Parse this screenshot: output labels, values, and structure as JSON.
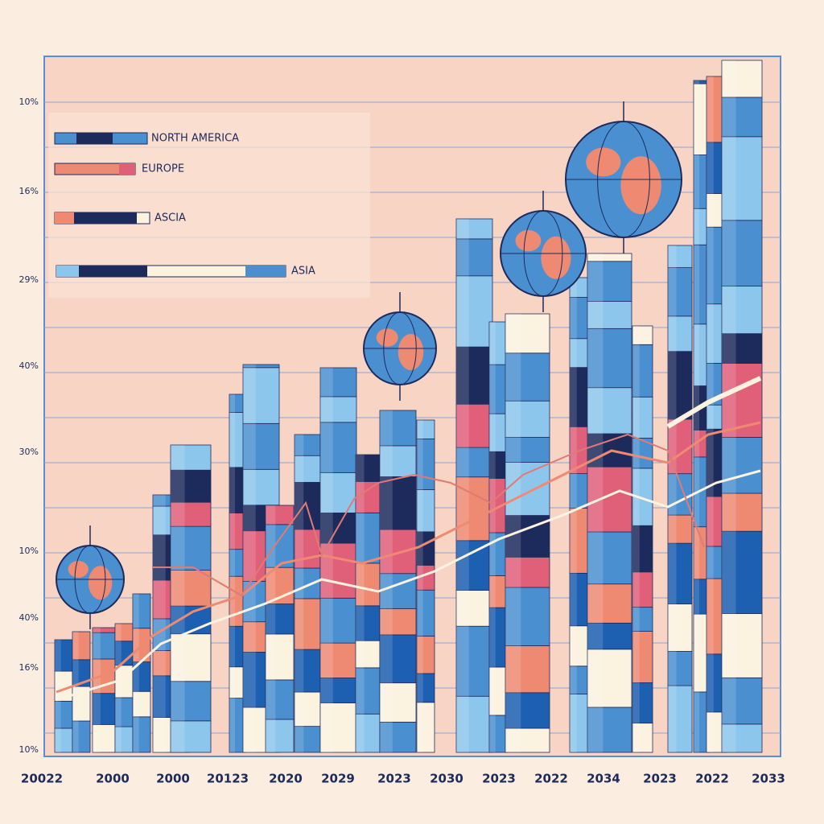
{
  "axis_labels": {
    "y": [
      "10%",
      "16%",
      "29%",
      "40%",
      "30%",
      "10%",
      "40%",
      "16%",
      "10%"
    ],
    "x": [
      "20022",
      "2000",
      "2000",
      "20123",
      "2020",
      "2029",
      "2023",
      "2030",
      "2023",
      "2022",
      "2034",
      "2023",
      "2022",
      "2033"
    ]
  },
  "legend": [
    "NORTH AMERICA",
    "EUROPE",
    "ASCIA",
    "ASIA"
  ]
}
